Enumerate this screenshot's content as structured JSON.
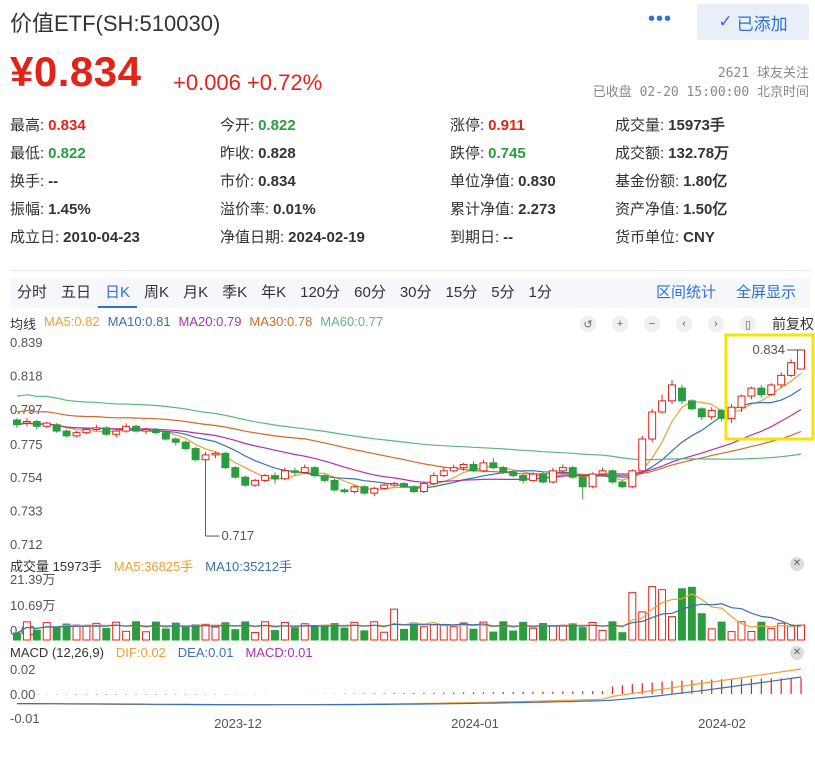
{
  "header": {
    "title": "价值ETF(SH:510030)",
    "more": "•••",
    "follow_btn": "已添加",
    "price": "¥0.834",
    "change": "+0.006",
    "change_pct": "+0.72%",
    "followers": "2621 球友关注",
    "status": "已收盘 02-20 15:00:00 北京时间"
  },
  "quote": [
    [
      {
        "label": "最高:",
        "value": "0.834",
        "color": "red"
      },
      {
        "label": "今开:",
        "value": "0.822",
        "color": "green"
      },
      {
        "label": "涨停:",
        "value": "0.911",
        "color": "red"
      },
      {
        "label": "成交量:",
        "value": "15973手",
        "color": ""
      }
    ],
    [
      {
        "label": "最低:",
        "value": "0.822",
        "color": "green"
      },
      {
        "label": "昨收:",
        "value": "0.828",
        "color": ""
      },
      {
        "label": "跌停:",
        "value": "0.745",
        "color": "green"
      },
      {
        "label": "成交额:",
        "value": "132.78万",
        "color": ""
      }
    ],
    [
      {
        "label": "换手:",
        "value": "--",
        "color": ""
      },
      {
        "label": "市价:",
        "value": "0.834",
        "color": ""
      },
      {
        "label": "单位净值:",
        "value": "0.830",
        "color": ""
      },
      {
        "label": "基金份额:",
        "value": "1.80亿",
        "color": ""
      }
    ],
    [
      {
        "label": "振幅:",
        "value": "1.45%",
        "color": ""
      },
      {
        "label": "溢价率:",
        "value": "0.01%",
        "color": ""
      },
      {
        "label": "累计净值:",
        "value": "2.273",
        "color": ""
      },
      {
        "label": "资产净值:",
        "value": "1.50亿",
        "color": ""
      }
    ],
    [
      {
        "label": "成立日:",
        "value": "2010-04-23",
        "color": ""
      },
      {
        "label": "净值日期:",
        "value": "2024-02-19",
        "color": ""
      },
      {
        "label": "到期日:",
        "value": "--",
        "color": ""
      },
      {
        "label": "货币单位:",
        "value": "CNY",
        "color": ""
      }
    ]
  ],
  "tabs": [
    "分时",
    "五日",
    "日K",
    "周K",
    "月K",
    "季K",
    "年K",
    "120分",
    "60分",
    "30分",
    "15分",
    "5分",
    "1分"
  ],
  "active_tab": "日K",
  "tab_right": {
    "range_stats": "区间统计",
    "fullscreen": "全屏显示"
  },
  "ma_legend": {
    "label": "均线",
    "items": [
      {
        "text": "MA5:0.82",
        "color": "#f0a030"
      },
      {
        "text": "MA10:0.81",
        "color": "#3a6fb0"
      },
      {
        "text": "MA20:0.79",
        "color": "#b030b0"
      },
      {
        "text": "MA30:0.78",
        "color": "#d46a2a"
      },
      {
        "text": "MA60:0.77",
        "color": "#5cb87a"
      }
    ]
  },
  "tools": {
    "fq": "前复权"
  },
  "price_axis": [
    "0.839",
    "0.818",
    "0.797",
    "0.775",
    "0.754",
    "0.733",
    "0.712"
  ],
  "annotations": {
    "high": "0.834",
    "low": "0.717"
  },
  "volume": {
    "label": "成交量 15973手",
    "ma5": "MA5:36825手",
    "ma10": "MA10:35212手",
    "axis": [
      "21.39万",
      "10.69万",
      "0.00"
    ]
  },
  "macd": {
    "label": "MACD (12,26,9)",
    "dif": "DIF:0.02",
    "dea": "DEA:0.01",
    "macd": "MACD:0.01",
    "axis": [
      "0.02",
      "0.00",
      "-0.01"
    ]
  },
  "x_axis": [
    "2023-12",
    "2024-01",
    "2024-02"
  ],
  "colors": {
    "up": "#e2231a",
    "down": "#2a9d3f",
    "accent": "#2e6fd8",
    "highlight": "#f5e500"
  },
  "chart_data": {
    "type": "candlestick",
    "ylim": [
      0.712,
      0.839
    ],
    "candles": [
      [
        0.79,
        0.787,
        0.791,
        0.785
      ],
      [
        0.788,
        0.789,
        0.791,
        0.786
      ],
      [
        0.789,
        0.786,
        0.79,
        0.784
      ],
      [
        0.786,
        0.788,
        0.789,
        0.785
      ],
      [
        0.787,
        0.783,
        0.788,
        0.782
      ],
      [
        0.783,
        0.78,
        0.784,
        0.779
      ],
      [
        0.78,
        0.782,
        0.783,
        0.779
      ],
      [
        0.782,
        0.784,
        0.785,
        0.781
      ],
      [
        0.784,
        0.785,
        0.787,
        0.783
      ],
      [
        0.785,
        0.781,
        0.786,
        0.78
      ],
      [
        0.781,
        0.783,
        0.784,
        0.779
      ],
      [
        0.783,
        0.786,
        0.788,
        0.782
      ],
      [
        0.786,
        0.783,
        0.787,
        0.782
      ],
      [
        0.783,
        0.784,
        0.785,
        0.781
      ],
      [
        0.784,
        0.782,
        0.785,
        0.781
      ],
      [
        0.782,
        0.778,
        0.783,
        0.777
      ],
      [
        0.778,
        0.776,
        0.779,
        0.774
      ],
      [
        0.776,
        0.772,
        0.777,
        0.771
      ],
      [
        0.772,
        0.765,
        0.773,
        0.764
      ],
      [
        0.765,
        0.768,
        0.77,
        0.717
      ],
      [
        0.768,
        0.769,
        0.77,
        0.766
      ],
      [
        0.769,
        0.76,
        0.77,
        0.759
      ],
      [
        0.76,
        0.754,
        0.761,
        0.753
      ],
      [
        0.754,
        0.749,
        0.755,
        0.748
      ],
      [
        0.749,
        0.752,
        0.753,
        0.748
      ],
      [
        0.752,
        0.755,
        0.756,
        0.751
      ],
      [
        0.755,
        0.753,
        0.757,
        0.75
      ],
      [
        0.753,
        0.758,
        0.76,
        0.752
      ],
      [
        0.758,
        0.757,
        0.76,
        0.755
      ],
      [
        0.757,
        0.76,
        0.762,
        0.756
      ],
      [
        0.76,
        0.755,
        0.761,
        0.754
      ],
      [
        0.755,
        0.752,
        0.756,
        0.751
      ],
      [
        0.752,
        0.746,
        0.753,
        0.745
      ],
      [
        0.746,
        0.745,
        0.747,
        0.744
      ],
      [
        0.745,
        0.748,
        0.749,
        0.744
      ],
      [
        0.748,
        0.744,
        0.749,
        0.743
      ],
      [
        0.744,
        0.747,
        0.748,
        0.742
      ],
      [
        0.747,
        0.749,
        0.75,
        0.746
      ],
      [
        0.749,
        0.75,
        0.751,
        0.748
      ],
      [
        0.75,
        0.748,
        0.751,
        0.747
      ],
      [
        0.748,
        0.745,
        0.749,
        0.744
      ],
      [
        0.745,
        0.75,
        0.751,
        0.744
      ],
      [
        0.75,
        0.755,
        0.757,
        0.749
      ],
      [
        0.755,
        0.758,
        0.76,
        0.754
      ],
      [
        0.758,
        0.76,
        0.762,
        0.757
      ],
      [
        0.76,
        0.762,
        0.763,
        0.758
      ],
      [
        0.762,
        0.758,
        0.764,
        0.757
      ],
      [
        0.758,
        0.763,
        0.765,
        0.757
      ],
      [
        0.763,
        0.76,
        0.766,
        0.759
      ],
      [
        0.76,
        0.757,
        0.761,
        0.756
      ],
      [
        0.757,
        0.755,
        0.758,
        0.754
      ],
      [
        0.755,
        0.752,
        0.756,
        0.75
      ],
      [
        0.752,
        0.756,
        0.757,
        0.751
      ],
      [
        0.756,
        0.751,
        0.757,
        0.75
      ],
      [
        0.751,
        0.758,
        0.76,
        0.75
      ],
      [
        0.758,
        0.76,
        0.762,
        0.757
      ],
      [
        0.76,
        0.754,
        0.761,
        0.753
      ],
      [
        0.754,
        0.748,
        0.755,
        0.74
      ],
      [
        0.748,
        0.756,
        0.757,
        0.747
      ],
      [
        0.756,
        0.758,
        0.76,
        0.755
      ],
      [
        0.758,
        0.751,
        0.759,
        0.75
      ],
      [
        0.751,
        0.748,
        0.752,
        0.747
      ],
      [
        0.748,
        0.758,
        0.759,
        0.747
      ],
      [
        0.758,
        0.778,
        0.78,
        0.757
      ],
      [
        0.778,
        0.795,
        0.797,
        0.776
      ],
      [
        0.795,
        0.802,
        0.806,
        0.794
      ],
      [
        0.802,
        0.812,
        0.815,
        0.8
      ],
      [
        0.81,
        0.802,
        0.812,
        0.8
      ],
      [
        0.802,
        0.797,
        0.803,
        0.796
      ],
      [
        0.797,
        0.792,
        0.798,
        0.79
      ],
      [
        0.792,
        0.796,
        0.798,
        0.79
      ],
      [
        0.796,
        0.791,
        0.797,
        0.789
      ],
      [
        0.791,
        0.798,
        0.8,
        0.788
      ],
      [
        0.798,
        0.805,
        0.806,
        0.795
      ],
      [
        0.805,
        0.81,
        0.811,
        0.803
      ],
      [
        0.81,
        0.806,
        0.812,
        0.804
      ],
      [
        0.806,
        0.812,
        0.813,
        0.805
      ],
      [
        0.812,
        0.818,
        0.82,
        0.81
      ],
      [
        0.818,
        0.826,
        0.828,
        0.817
      ],
      [
        0.822,
        0.834,
        0.834,
        0.822
      ]
    ],
    "volume_max": 21.39
  }
}
